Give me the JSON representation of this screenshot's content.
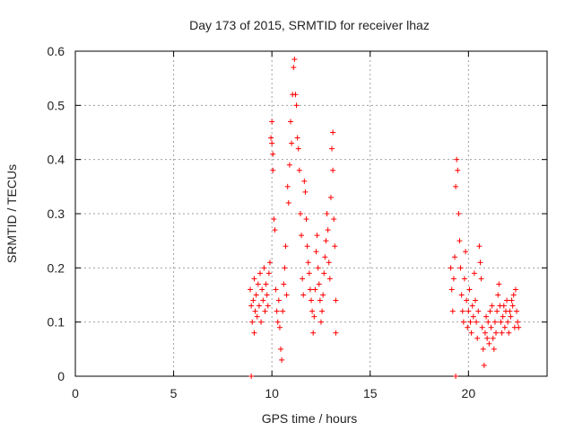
{
  "chart_data": {
    "type": "scatter",
    "title": "Day 173 of 2015, SRMTID for receiver lhaz",
    "xlabel": "GPS time / hours",
    "ylabel": "SRMTID / TECUs",
    "xlim": [
      0,
      24
    ],
    "ylim": [
      0,
      0.6
    ],
    "grid": true,
    "xticks": [
      0,
      5,
      10,
      15,
      20
    ],
    "xtick_labels": [
      "0",
      "5",
      "10",
      "15",
      "20"
    ],
    "yticks": [
      0,
      0.1,
      0.2,
      0.3,
      0.4,
      0.5,
      0.6
    ],
    "ytick_labels": [
      "0",
      "0.1",
      "0.2",
      "0.3",
      "0.4",
      "0.5",
      "0.6"
    ],
    "marker": "plus",
    "series_color": "#ff0000",
    "series": [
      {
        "name": "SRMTID",
        "points": [
          [
            8.95,
            0.0
          ],
          [
            19.35,
            0.0
          ],
          [
            8.9,
            0.16
          ],
          [
            8.95,
            0.13
          ],
          [
            9.0,
            0.1
          ],
          [
            9.05,
            0.14
          ],
          [
            9.1,
            0.08
          ],
          [
            9.1,
            0.18
          ],
          [
            9.15,
            0.12
          ],
          [
            9.2,
            0.15
          ],
          [
            9.25,
            0.11
          ],
          [
            9.3,
            0.17
          ],
          [
            9.35,
            0.13
          ],
          [
            9.4,
            0.19
          ],
          [
            9.45,
            0.1
          ],
          [
            9.5,
            0.16
          ],
          [
            9.55,
            0.14
          ],
          [
            9.6,
            0.2
          ],
          [
            9.65,
            0.12
          ],
          [
            9.7,
            0.17
          ],
          [
            9.75,
            0.15
          ],
          [
            9.8,
            0.13
          ],
          [
            9.85,
            0.19
          ],
          [
            9.9,
            0.21
          ],
          [
            9.95,
            0.44
          ],
          [
            10.0,
            0.43
          ],
          [
            10.0,
            0.47
          ],
          [
            10.05,
            0.41
          ],
          [
            10.05,
            0.38
          ],
          [
            10.1,
            0.29
          ],
          [
            10.15,
            0.27
          ],
          [
            10.2,
            0.16
          ],
          [
            10.25,
            0.12
          ],
          [
            10.3,
            0.1
          ],
          [
            10.35,
            0.14
          ],
          [
            10.4,
            0.09
          ],
          [
            10.45,
            0.05
          ],
          [
            10.5,
            0.03
          ],
          [
            10.55,
            0.12
          ],
          [
            10.6,
            0.17
          ],
          [
            10.65,
            0.2
          ],
          [
            10.7,
            0.24
          ],
          [
            10.75,
            0.15
          ],
          [
            10.8,
            0.35
          ],
          [
            10.85,
            0.32
          ],
          [
            10.9,
            0.39
          ],
          [
            10.95,
            0.47
          ],
          [
            11.0,
            0.43
          ],
          [
            11.05,
            0.52
          ],
          [
            11.1,
            0.57
          ],
          [
            11.15,
            0.585
          ],
          [
            11.2,
            0.52
          ],
          [
            11.25,
            0.5
          ],
          [
            11.3,
            0.44
          ],
          [
            11.35,
            0.42
          ],
          [
            11.4,
            0.38
          ],
          [
            11.45,
            0.3
          ],
          [
            11.5,
            0.26
          ],
          [
            11.55,
            0.18
          ],
          [
            11.6,
            0.15
          ],
          [
            11.65,
            0.36
          ],
          [
            11.7,
            0.34
          ],
          [
            11.75,
            0.29
          ],
          [
            11.8,
            0.24
          ],
          [
            11.85,
            0.21
          ],
          [
            11.9,
            0.19
          ],
          [
            11.95,
            0.16
          ],
          [
            12.0,
            0.14
          ],
          [
            12.05,
            0.12
          ],
          [
            12.1,
            0.08
          ],
          [
            12.15,
            0.11
          ],
          [
            12.2,
            0.16
          ],
          [
            12.25,
            0.23
          ],
          [
            12.3,
            0.26
          ],
          [
            12.35,
            0.2
          ],
          [
            12.4,
            0.17
          ],
          [
            12.45,
            0.14
          ],
          [
            12.5,
            0.1
          ],
          [
            12.55,
            0.12
          ],
          [
            12.6,
            0.15
          ],
          [
            12.65,
            0.19
          ],
          [
            12.7,
            0.22
          ],
          [
            12.75,
            0.25
          ],
          [
            12.8,
            0.3
          ],
          [
            12.85,
            0.27
          ],
          [
            12.9,
            0.21
          ],
          [
            12.95,
            0.18
          ],
          [
            13.0,
            0.33
          ],
          [
            13.05,
            0.42
          ],
          [
            13.1,
            0.45
          ],
          [
            13.1,
            0.38
          ],
          [
            13.15,
            0.29
          ],
          [
            13.2,
            0.24
          ],
          [
            13.25,
            0.14
          ],
          [
            13.25,
            0.08
          ],
          [
            19.1,
            0.2
          ],
          [
            19.15,
            0.16
          ],
          [
            19.2,
            0.12
          ],
          [
            19.25,
            0.18
          ],
          [
            19.3,
            0.22
          ],
          [
            19.35,
            0.35
          ],
          [
            19.4,
            0.4
          ],
          [
            19.45,
            0.38
          ],
          [
            19.5,
            0.3
          ],
          [
            19.55,
            0.25
          ],
          [
            19.6,
            0.2
          ],
          [
            19.65,
            0.15
          ],
          [
            19.7,
            0.12
          ],
          [
            19.75,
            0.1
          ],
          [
            19.8,
            0.18
          ],
          [
            19.85,
            0.23
          ],
          [
            19.9,
            0.14
          ],
          [
            19.95,
            0.09
          ],
          [
            20.0,
            0.12
          ],
          [
            20.05,
            0.16
          ],
          [
            20.1,
            0.1
          ],
          [
            20.15,
            0.08
          ],
          [
            20.2,
            0.13
          ],
          [
            20.25,
            0.11
          ],
          [
            20.3,
            0.19
          ],
          [
            20.35,
            0.14
          ],
          [
            20.4,
            0.1
          ],
          [
            20.45,
            0.07
          ],
          [
            20.5,
            0.12
          ],
          [
            20.55,
            0.24
          ],
          [
            20.6,
            0.21
          ],
          [
            20.65,
            0.18
          ],
          [
            20.7,
            0.09
          ],
          [
            20.75,
            0.05
          ],
          [
            20.8,
            0.02
          ],
          [
            20.85,
            0.08
          ],
          [
            20.9,
            0.11
          ],
          [
            20.95,
            0.07
          ],
          [
            21.0,
            0.1
          ],
          [
            21.05,
            0.06
          ],
          [
            21.1,
            0.12
          ],
          [
            21.15,
            0.09
          ],
          [
            21.2,
            0.13
          ],
          [
            21.25,
            0.07
          ],
          [
            21.3,
            0.05
          ],
          [
            21.35,
            0.1
          ],
          [
            21.4,
            0.08
          ],
          [
            21.45,
            0.12
          ],
          [
            21.5,
            0.15
          ],
          [
            21.55,
            0.17
          ],
          [
            21.6,
            0.13
          ],
          [
            21.65,
            0.1
          ],
          [
            21.7,
            0.08
          ],
          [
            21.75,
            0.11
          ],
          [
            21.8,
            0.13
          ],
          [
            21.85,
            0.09
          ],
          [
            21.9,
            0.12
          ],
          [
            21.95,
            0.14
          ],
          [
            22.0,
            0.1
          ],
          [
            22.05,
            0.08
          ],
          [
            22.1,
            0.12
          ],
          [
            22.15,
            0.11
          ],
          [
            22.2,
            0.14
          ],
          [
            22.25,
            0.13
          ],
          [
            22.3,
            0.15
          ],
          [
            22.35,
            0.09
          ],
          [
            22.4,
            0.16
          ],
          [
            22.45,
            0.12
          ],
          [
            22.5,
            0.1
          ],
          [
            22.55,
            0.09
          ]
        ]
      }
    ]
  }
}
